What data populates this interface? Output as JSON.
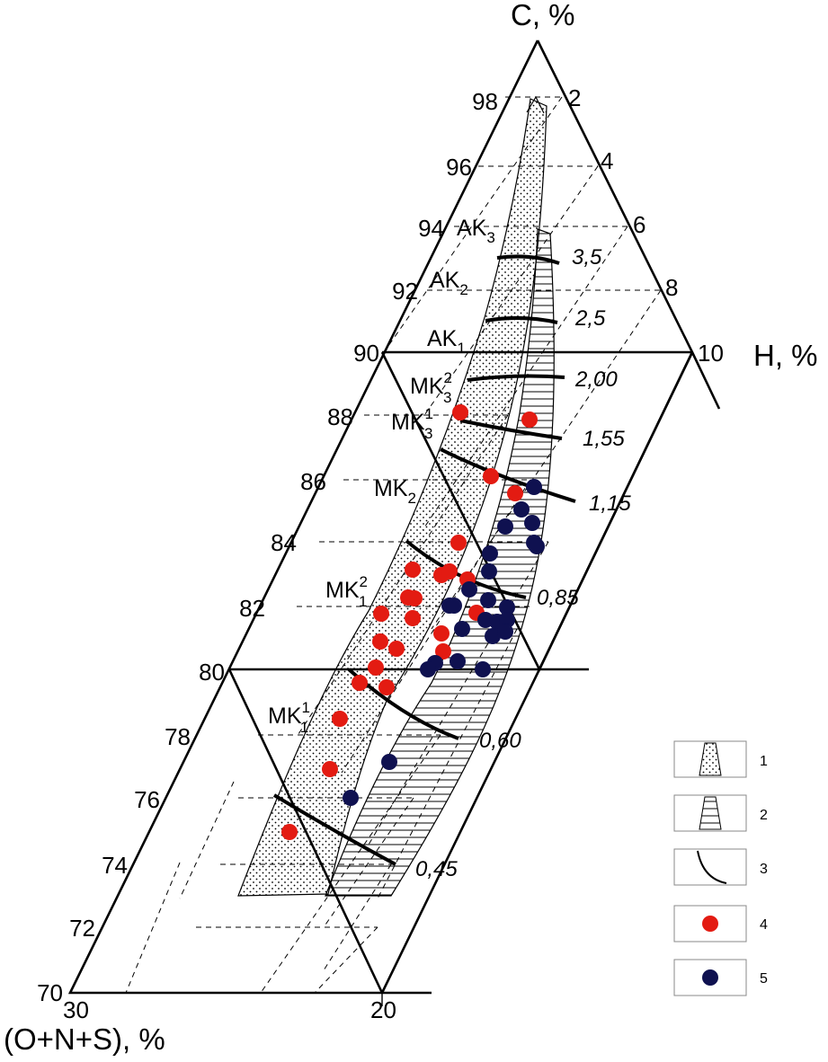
{
  "axes": {
    "carbon_label": "C, %",
    "hydrogen_label": "H, %",
    "heteroatom_label": "(O+N+S), %",
    "carbon_ticks": [
      "98",
      "96",
      "94",
      "92",
      "90",
      "88",
      "86",
      "84",
      "82",
      "80",
      "78",
      "76",
      "74",
      "72",
      "70"
    ],
    "hydrogen_ticks": [
      "2",
      "4",
      "6",
      "8",
      "10"
    ],
    "bottom_ticks": [
      "30",
      "20"
    ]
  },
  "stages": [
    "AK",
    "AK",
    "AK",
    "MK",
    "MK",
    "MK",
    "MK",
    "MK"
  ],
  "stage_sub": [
    "3",
    "2",
    "1",
    "3",
    "3",
    "2",
    "1",
    "1"
  ],
  "stage_sup": [
    "",
    "",
    "",
    "2",
    "1",
    "",
    "2",
    "1"
  ],
  "isolines": [
    "3,5",
    "2,5",
    "2,00",
    "1,55",
    "1,15",
    "0,85",
    "0,60",
    "0,45"
  ],
  "legend": [
    "1",
    "2",
    "3",
    "4",
    "5"
  ],
  "colors": {
    "red_points": "#e31b12",
    "blue_points": "#0f1150",
    "line": "#000000"
  }
}
